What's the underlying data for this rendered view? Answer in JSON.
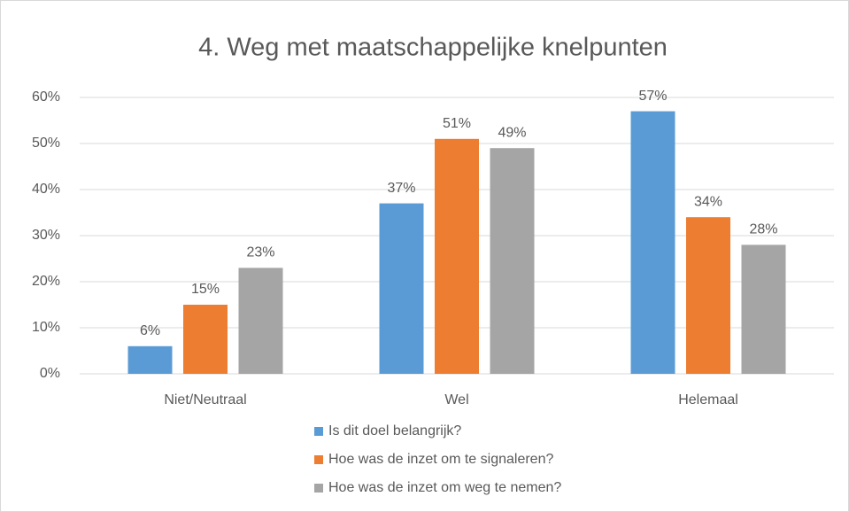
{
  "chart_data": {
    "type": "bar",
    "title": "4. Weg met maatschappelijke knelpunten",
    "categories": [
      "Niet/Neutraal",
      "Wel",
      "Helemaal"
    ],
    "series": [
      {
        "name": "Is dit doel belangrijk?",
        "color": "#5b9bd5",
        "values": [
          6,
          37,
          57
        ],
        "value_labels": [
          "6%",
          "37%",
          "57%"
        ]
      },
      {
        "name": "Hoe was de inzet om te signaleren?",
        "color": "#ed7d31",
        "values": [
          15,
          51,
          34
        ],
        "value_labels": [
          "15%",
          "51%",
          "34%"
        ]
      },
      {
        "name": "Hoe was de inzet om weg te nemen?",
        "color": "#a5a5a5",
        "values": [
          23,
          49,
          28
        ],
        "value_labels": [
          "23%",
          "49%",
          "28%"
        ]
      }
    ],
    "ylim": [
      0,
      60
    ],
    "yticks": [
      {
        "value": 0,
        "label": "0%"
      },
      {
        "value": 10,
        "label": "10%"
      },
      {
        "value": 20,
        "label": "20%"
      },
      {
        "value": 30,
        "label": "30%"
      },
      {
        "value": 40,
        "label": "40%"
      },
      {
        "value": 50,
        "label": "50%"
      },
      {
        "value": 60,
        "label": "60%"
      }
    ],
    "grid": true,
    "legend": "bottom"
  }
}
